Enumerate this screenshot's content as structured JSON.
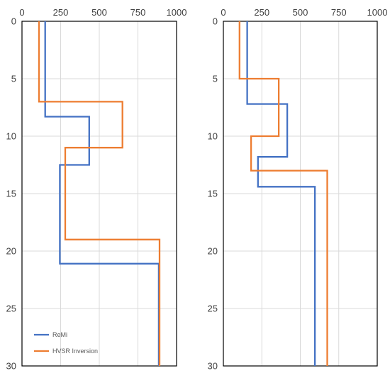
{
  "chart_data": [
    {
      "type": "line",
      "step_profile": true,
      "x_ticks": [
        "0",
        "250",
        "500",
        "750",
        "1000"
      ],
      "y_ticks": [
        "0",
        "5",
        "10",
        "15",
        "20",
        "25",
        "30"
      ],
      "xlim": [
        0,
        1000
      ],
      "ylim": [
        0,
        30
      ],
      "y_axis_inverted": true,
      "x_axis_position": "top",
      "grid": true,
      "legend": {
        "placement": "bottom-left",
        "entries": [
          "ReMi",
          "HVSR Inversion"
        ]
      },
      "series": [
        {
          "name": "ReMi",
          "color": "#4472C4",
          "points": [
            [
              150,
              0
            ],
            [
              150,
              8.3
            ],
            [
              435,
              8.3
            ],
            [
              435,
              12.5
            ],
            [
              245,
              12.5
            ],
            [
              245,
              21.1
            ],
            [
              885,
              21.1
            ],
            [
              885,
              30
            ]
          ]
        },
        {
          "name": "HVSR Inversion",
          "color": "#ED7D31",
          "points": [
            [
              110,
              0
            ],
            [
              110,
              7.0
            ],
            [
              650,
              7.0
            ],
            [
              650,
              11.0
            ],
            [
              280,
              11.0
            ],
            [
              280,
              19.0
            ],
            [
              890,
              19.0
            ],
            [
              890,
              30
            ]
          ]
        }
      ]
    },
    {
      "type": "line",
      "step_profile": true,
      "x_ticks": [
        "0",
        "250",
        "500",
        "750",
        "1000"
      ],
      "y_ticks": [
        "0",
        "5",
        "10",
        "15",
        "20",
        "25",
        "30"
      ],
      "xlim": [
        0,
        1000
      ],
      "ylim": [
        0,
        30
      ],
      "y_axis_inverted": true,
      "x_axis_position": "top",
      "grid": true,
      "series": [
        {
          "name": "ReMi",
          "color": "#4472C4",
          "points": [
            [
              155,
              0
            ],
            [
              155,
              7.2
            ],
            [
              415,
              7.2
            ],
            [
              415,
              11.8
            ],
            [
              225,
              11.8
            ],
            [
              225,
              14.4
            ],
            [
              595,
              14.4
            ],
            [
              595,
              30
            ]
          ]
        },
        {
          "name": "HVSR Inversion",
          "color": "#ED7D31",
          "points": [
            [
              105,
              0
            ],
            [
              105,
              5.0
            ],
            [
              360,
              5.0
            ],
            [
              360,
              10.0
            ],
            [
              180,
              10.0
            ],
            [
              180,
              13.0
            ],
            [
              675,
              13.0
            ],
            [
              675,
              30
            ]
          ]
        }
      ]
    }
  ]
}
